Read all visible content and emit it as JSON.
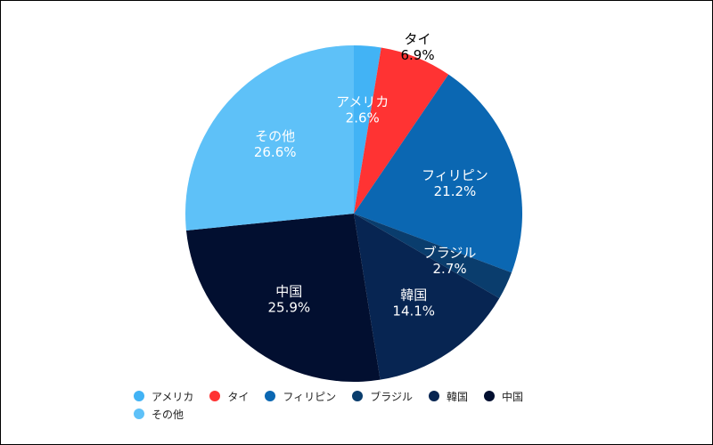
{
  "chart_data": {
    "type": "pie",
    "title": "",
    "slices": [
      {
        "label": "アメリカ",
        "value": 2.6,
        "value_label": "2.6%",
        "color": "#42b3f5",
        "label_color": "#ffffff",
        "label_outside": false
      },
      {
        "label": "タイ",
        "value": 6.9,
        "value_label": "6.9%",
        "color": "#ff3333",
        "label_color": "#000000",
        "label_outside": true
      },
      {
        "label": "フィリピン",
        "value": 21.2,
        "value_label": "21.2%",
        "color": "#0b67b2",
        "label_color": "#ffffff",
        "label_outside": false
      },
      {
        "label": "ブラジル",
        "value": 2.7,
        "value_label": "2.7%",
        "color": "#0a3d6d",
        "label_color": "#ffffff",
        "label_outside": false
      },
      {
        "label": "韓国",
        "value": 14.1,
        "value_label": "14.1%",
        "color": "#072552",
        "label_color": "#ffffff",
        "label_outside": false
      },
      {
        "label": "中国",
        "value": 25.9,
        "value_label": "25.9%",
        "color": "#020f30",
        "label_color": "#ffffff",
        "label_outside": false
      },
      {
        "label": "その他",
        "value": 26.6,
        "value_label": "26.6%",
        "color": "#5ec1f8",
        "label_color": "#ffffff",
        "label_outside": false
      }
    ],
    "legend_position": "bottom",
    "start_angle": "12 o'clock",
    "direction": "clockwise"
  }
}
